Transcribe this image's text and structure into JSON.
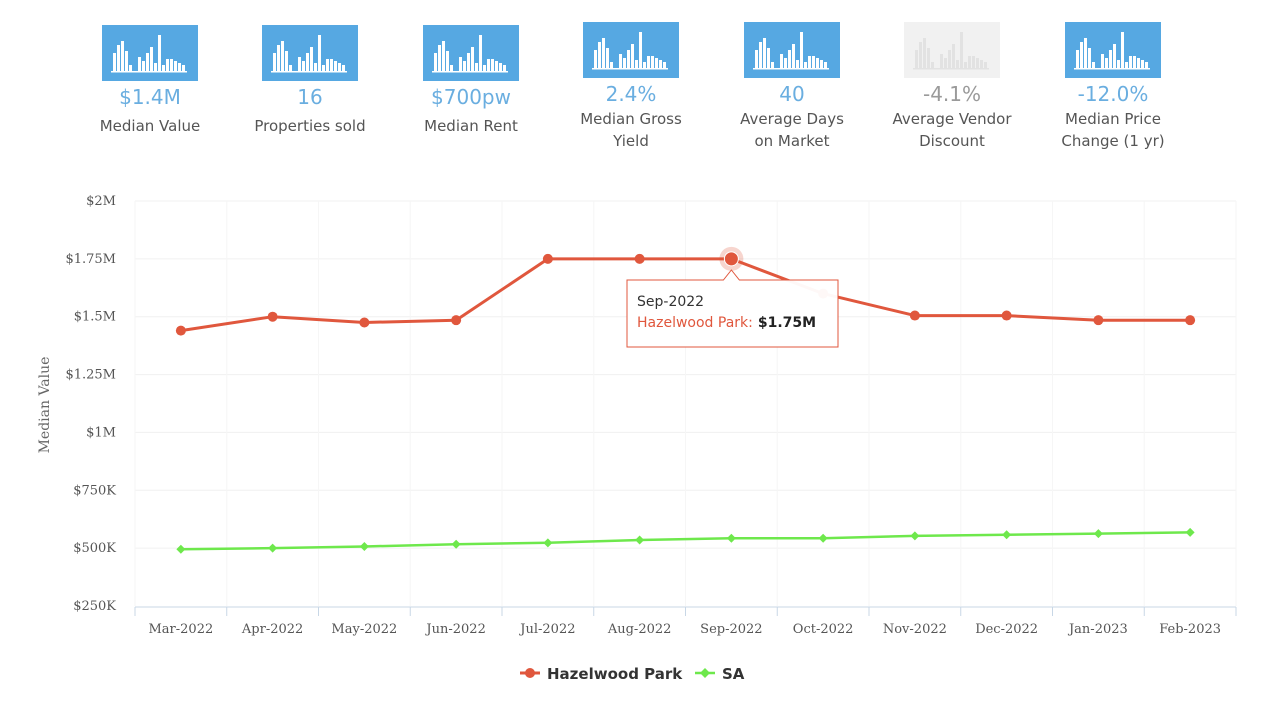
{
  "stats": [
    {
      "value": "$1.4M",
      "label": "Median Value",
      "muted": false
    },
    {
      "value": "16",
      "label": "Properties sold",
      "muted": false
    },
    {
      "value": "$700pw",
      "label": "Median Rent",
      "muted": false
    },
    {
      "value": "2.4%",
      "label": "Median Gross Yield",
      "muted": false
    },
    {
      "value": "40",
      "label": "Average Days on Market",
      "muted": false
    },
    {
      "value": "-4.1%",
      "label": "Average Vendor Discount",
      "muted": true
    },
    {
      "value": "-12.0%",
      "label": "Median Price Change (1 yr)",
      "muted": false
    }
  ],
  "colors": {
    "icon": "#56a8e2",
    "icon_muted": "#f1f1f1",
    "stat_value": "#6aaee0",
    "hazelwood": "#e0573d",
    "sa": "#6ee84c"
  },
  "icon_name": "bar-chart-icon",
  "chart_data": {
    "type": "line",
    "categories": [
      "Mar-2022",
      "Apr-2022",
      "May-2022",
      "Jun-2022",
      "Jul-2022",
      "Aug-2022",
      "Sep-2022",
      "Oct-2022",
      "Nov-2022",
      "Dec-2022",
      "Jan-2023",
      "Feb-2023"
    ],
    "series": [
      {
        "name": "Hazelwood Park",
        "values": [
          1440000,
          1500000,
          1475000,
          1485000,
          1750000,
          1750000,
          1750000,
          1600000,
          1505000,
          1505000,
          1485000,
          1485000
        ]
      },
      {
        "name": "SA",
        "values": [
          495000,
          500000,
          507000,
          517000,
          523000,
          535000,
          543000,
          543000,
          553000,
          558000,
          563000,
          568000
        ]
      }
    ],
    "ylabel": "Median Value",
    "ylim": [
      250000,
      2000000
    ],
    "yticks": [
      250000,
      500000,
      750000,
      1000000,
      1250000,
      1500000,
      1750000,
      2000000
    ],
    "ytick_labels": [
      "$250K",
      "$500K",
      "$750K",
      "$1M",
      "$1.25M",
      "$1.5M",
      "$1.75M",
      "$2M"
    ],
    "grid": true,
    "legend": "bottom",
    "tooltip": {
      "category": "Sep-2022",
      "series": "Hazelwood Park:",
      "value": "$1.75M"
    }
  }
}
